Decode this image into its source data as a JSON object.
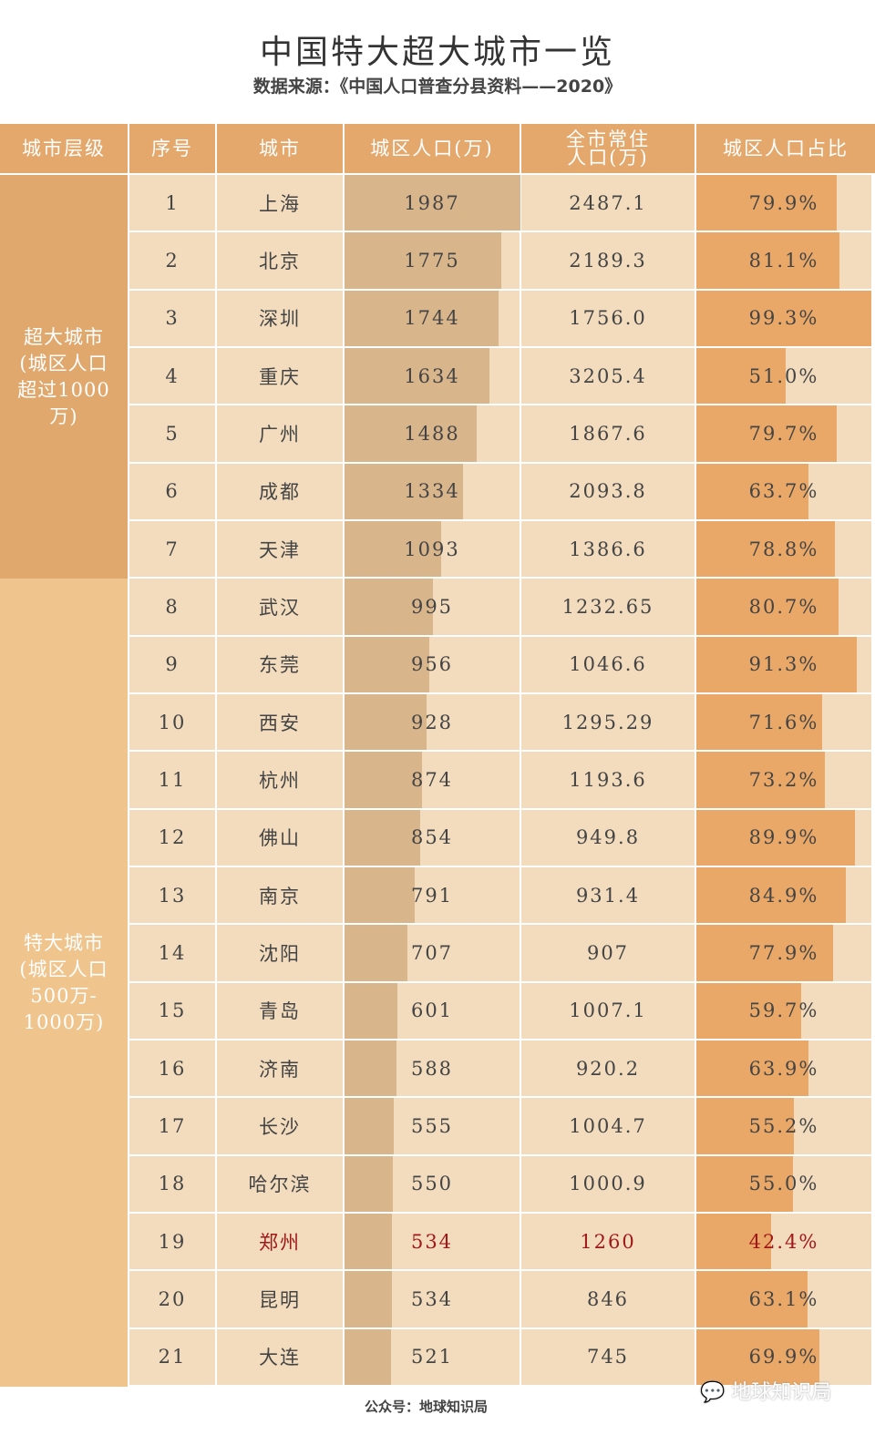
{
  "title": "中国特大超大城市一览",
  "subtitle": "数据来源：《中国人口普查分县资料——2020》",
  "headers": [
    "城市层级",
    "序号",
    "城市",
    "城区人口(万)",
    "全市常住\n人口(万)",
    "城区人口占比"
  ],
  "tiers": [
    {
      "label": "超大城市\n(城区人口\n超过1000\n万)",
      "rows": [
        1,
        7
      ],
      "color": "#e0a86d"
    },
    {
      "label": "特大城市\n(城区人口\n500万-\n1000万)",
      "rows": [
        8,
        21
      ],
      "color": "#f0c48d"
    }
  ],
  "colors": {
    "header": "#e4a86c",
    "cell": "#f2dcbd",
    "urban_bar": "#d9b58b",
    "ratio_bar": "#e9a867",
    "highlight": "#a01818"
  },
  "highlight_city": "郑州",
  "chart_data": {
    "type": "table",
    "title": "中国特大超大城市一览",
    "columns": [
      "序号",
      "城市",
      "城区人口(万)",
      "全市常住人口(万)",
      "城区人口占比"
    ],
    "rows": [
      {
        "rank": "1",
        "city": "上海",
        "urban": 1987,
        "urban_text": "1987",
        "total": "2487.1",
        "ratio": 79.9,
        "ratio_text": "79.9%"
      },
      {
        "rank": "2",
        "city": "北京",
        "urban": 1775,
        "urban_text": "1775",
        "total": "2189.3",
        "ratio": 81.1,
        "ratio_text": "81.1%"
      },
      {
        "rank": "3",
        "city": "深圳",
        "urban": 1744,
        "urban_text": "1744",
        "total": "1756.0",
        "ratio": 99.3,
        "ratio_text": "99.3%"
      },
      {
        "rank": "4",
        "city": "重庆",
        "urban": 1634,
        "urban_text": "1634",
        "total": "3205.4",
        "ratio": 51.0,
        "ratio_text": "51.0%"
      },
      {
        "rank": "5",
        "city": "广州",
        "urban": 1488,
        "urban_text": "1488",
        "total": "1867.6",
        "ratio": 79.7,
        "ratio_text": "79.7%"
      },
      {
        "rank": "6",
        "city": "成都",
        "urban": 1334,
        "urban_text": "1334",
        "total": "2093.8",
        "ratio": 63.7,
        "ratio_text": "63.7%"
      },
      {
        "rank": "7",
        "city": "天津",
        "urban": 1093,
        "urban_text": "1093",
        "total": "1386.6",
        "ratio": 78.8,
        "ratio_text": "78.8%"
      },
      {
        "rank": "8",
        "city": "武汉",
        "urban": 995,
        "urban_text": "995",
        "total": "1232.65",
        "ratio": 80.7,
        "ratio_text": "80.7%"
      },
      {
        "rank": "9",
        "city": "东莞",
        "urban": 956,
        "urban_text": "956",
        "total": "1046.6",
        "ratio": 91.3,
        "ratio_text": "91.3%"
      },
      {
        "rank": "10",
        "city": "西安",
        "urban": 928,
        "urban_text": "928",
        "total": "1295.29",
        "ratio": 71.6,
        "ratio_text": "71.6%"
      },
      {
        "rank": "11",
        "city": "杭州",
        "urban": 874,
        "urban_text": "874",
        "total": "1193.6",
        "ratio": 73.2,
        "ratio_text": "73.2%"
      },
      {
        "rank": "12",
        "city": "佛山",
        "urban": 854,
        "urban_text": "854",
        "total": "949.8",
        "ratio": 89.9,
        "ratio_text": "89.9%"
      },
      {
        "rank": "13",
        "city": "南京",
        "urban": 791,
        "urban_text": "791",
        "total": "931.4",
        "ratio": 84.9,
        "ratio_text": "84.9%"
      },
      {
        "rank": "14",
        "city": "沈阳",
        "urban": 707,
        "urban_text": "707",
        "total": "907",
        "ratio": 77.9,
        "ratio_text": "77.9%"
      },
      {
        "rank": "15",
        "city": "青岛",
        "urban": 601,
        "urban_text": "601",
        "total": "1007.1",
        "ratio": 59.7,
        "ratio_text": "59.7%"
      },
      {
        "rank": "16",
        "city": "济南",
        "urban": 588,
        "urban_text": "588",
        "total": "920.2",
        "ratio": 63.9,
        "ratio_text": "63.9%"
      },
      {
        "rank": "17",
        "city": "长沙",
        "urban": 555,
        "urban_text": "555",
        "total": "1004.7",
        "ratio": 55.2,
        "ratio_text": "55.2%"
      },
      {
        "rank": "18",
        "city": "哈尔滨",
        "urban": 550,
        "urban_text": "550",
        "total": "1000.9",
        "ratio": 55.0,
        "ratio_text": "55.0%"
      },
      {
        "rank": "19",
        "city": "郑州",
        "urban": 534,
        "urban_text": "534",
        "total": "1260",
        "ratio": 42.4,
        "ratio_text": "42.4%"
      },
      {
        "rank": "20",
        "city": "昆明",
        "urban": 534,
        "urban_text": "534",
        "total": "846",
        "ratio": 63.1,
        "ratio_text": "63.1%"
      },
      {
        "rank": "21",
        "city": "大连",
        "urban": 521,
        "urban_text": "521",
        "total": "745",
        "ratio": 69.9,
        "ratio_text": "69.9%"
      }
    ]
  },
  "footer": "公众号：地球知识局",
  "watermark": "地球知识局"
}
